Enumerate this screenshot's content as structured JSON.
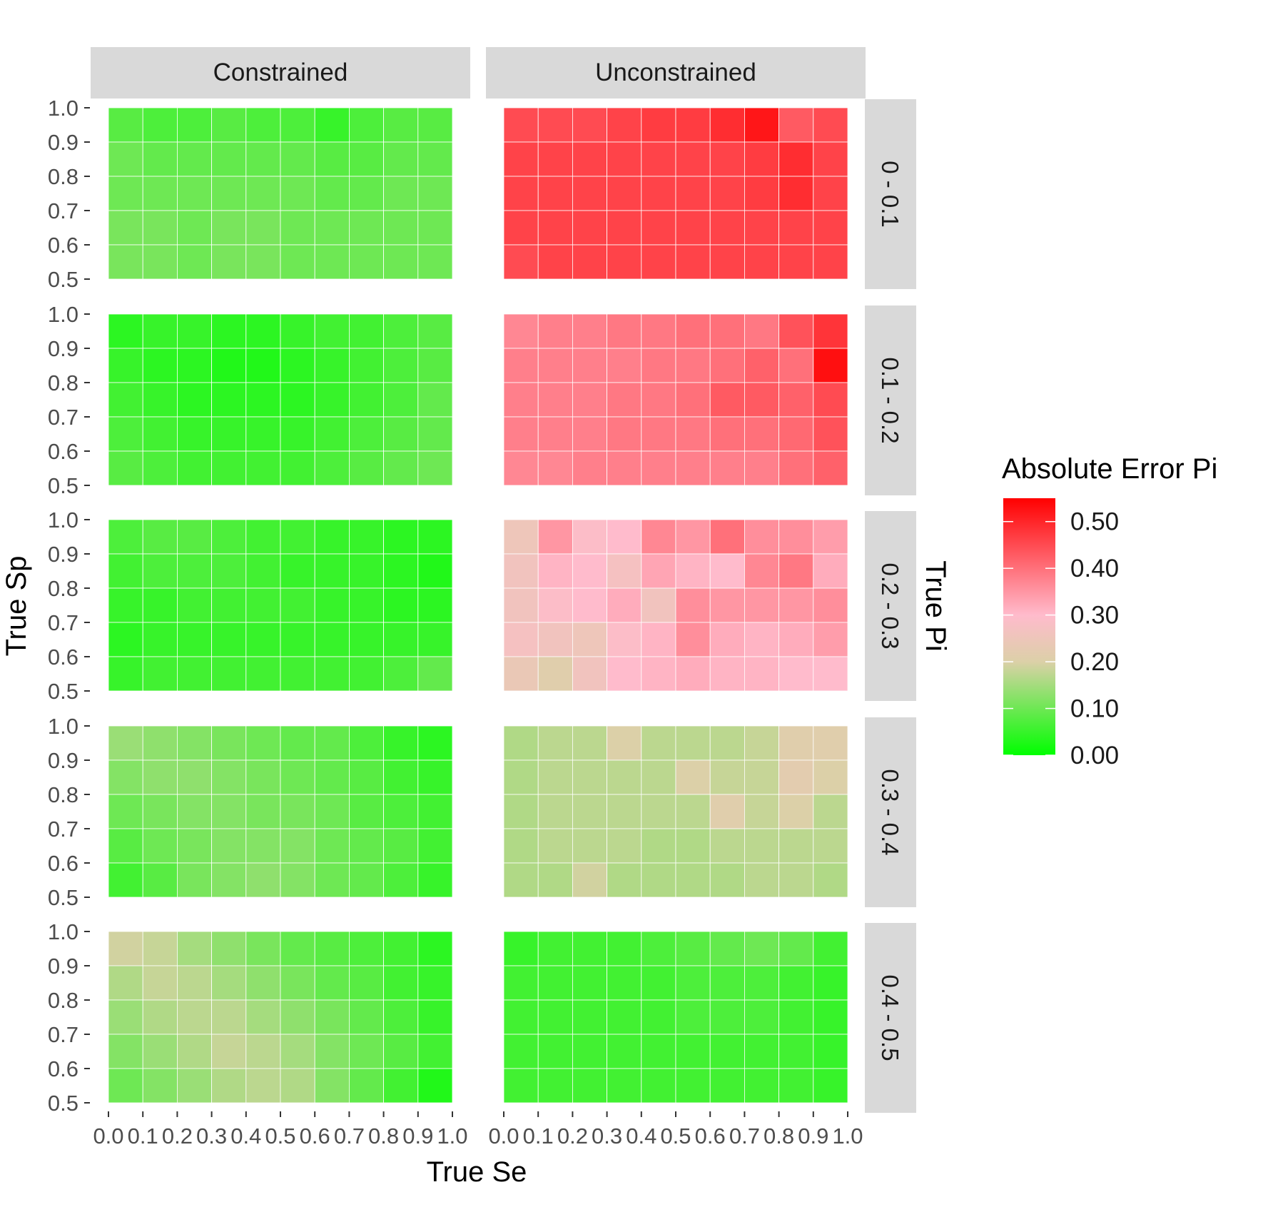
{
  "chart_data": {
    "type": "heatmap",
    "xlabel": "True Se",
    "ylabel": "True Sp",
    "facet_row_label": "True Pi",
    "legend_title": "Absolute Error Pi",
    "x_breaks": [
      "0.0",
      "0.1",
      "0.2",
      "0.3",
      "0.4",
      "0.5",
      "0.6",
      "0.7",
      "0.8",
      "0.9",
      "1.0"
    ],
    "y_breaks": [
      "0.5",
      "0.6",
      "0.7",
      "0.8",
      "0.9",
      "1.0"
    ],
    "xlim": [
      0,
      1
    ],
    "ylim": [
      0.5,
      1
    ],
    "x_centers": [
      0.05,
      0.15,
      0.25,
      0.35,
      0.45,
      0.55,
      0.65,
      0.75,
      0.85,
      0.95
    ],
    "y_centers": [
      0.95,
      0.85,
      0.75,
      0.65,
      0.55
    ],
    "color_scale": {
      "stops": [
        {
          "value": 0.0,
          "color": "#00ff00"
        },
        {
          "value": 0.2,
          "color": "#dcd0a8"
        },
        {
          "value": 0.3,
          "color": "#ffbbcc"
        },
        {
          "value": 0.55,
          "color": "#ff0000"
        }
      ],
      "limits": [
        0,
        0.55
      ],
      "breaks": [
        "0.00",
        "0.10",
        "0.20",
        "0.30",
        "0.40",
        "0.50"
      ]
    },
    "columns": [
      "Constrained",
      "Unconstrained"
    ],
    "rows": [
      "0 - 0.1",
      "0.1 - 0.2",
      "0.2 - 0.3",
      "0.3 - 0.4",
      "0.4 - 0.5"
    ],
    "panels": [
      {
        "row": "0 - 0.1",
        "col": "Constrained",
        "values": [
          [
            0.08,
            0.07,
            0.07,
            0.08,
            0.07,
            0.07,
            0.05,
            0.07,
            0.08,
            0.08
          ],
          [
            0.1,
            0.09,
            0.09,
            0.09,
            0.09,
            0.09,
            0.08,
            0.08,
            0.09,
            0.09
          ],
          [
            0.1,
            0.1,
            0.1,
            0.1,
            0.1,
            0.1,
            0.09,
            0.09,
            0.1,
            0.1
          ],
          [
            0.11,
            0.11,
            0.1,
            0.11,
            0.11,
            0.1,
            0.1,
            0.1,
            0.1,
            0.1
          ],
          [
            0.11,
            0.11,
            0.1,
            0.11,
            0.11,
            0.1,
            0.1,
            0.1,
            0.1,
            0.1
          ]
        ]
      },
      {
        "row": "0 - 0.1",
        "col": "Unconstrained",
        "values": [
          [
            0.45,
            0.45,
            0.45,
            0.46,
            0.47,
            0.47,
            0.49,
            0.52,
            0.43,
            0.45
          ],
          [
            0.46,
            0.46,
            0.46,
            0.46,
            0.46,
            0.46,
            0.46,
            0.47,
            0.49,
            0.46
          ],
          [
            0.46,
            0.46,
            0.46,
            0.46,
            0.46,
            0.46,
            0.46,
            0.47,
            0.49,
            0.46
          ],
          [
            0.46,
            0.46,
            0.46,
            0.46,
            0.46,
            0.46,
            0.46,
            0.46,
            0.46,
            0.46
          ],
          [
            0.45,
            0.46,
            0.46,
            0.46,
            0.46,
            0.46,
            0.46,
            0.46,
            0.46,
            0.46
          ]
        ]
      },
      {
        "row": "0.1 - 0.2",
        "col": "Constrained",
        "values": [
          [
            0.04,
            0.05,
            0.05,
            0.04,
            0.04,
            0.05,
            0.06,
            0.06,
            0.07,
            0.08
          ],
          [
            0.05,
            0.04,
            0.04,
            0.03,
            0.03,
            0.04,
            0.05,
            0.06,
            0.07,
            0.08
          ],
          [
            0.06,
            0.05,
            0.04,
            0.04,
            0.04,
            0.04,
            0.05,
            0.06,
            0.07,
            0.09
          ],
          [
            0.07,
            0.06,
            0.05,
            0.05,
            0.05,
            0.05,
            0.06,
            0.07,
            0.08,
            0.09
          ],
          [
            0.08,
            0.07,
            0.06,
            0.06,
            0.06,
            0.06,
            0.07,
            0.08,
            0.09,
            0.1
          ]
        ]
      },
      {
        "row": "0.1 - 0.2",
        "col": "Unconstrained",
        "values": [
          [
            0.37,
            0.38,
            0.38,
            0.39,
            0.39,
            0.4,
            0.4,
            0.39,
            0.44,
            0.48
          ],
          [
            0.38,
            0.38,
            0.38,
            0.38,
            0.39,
            0.39,
            0.4,
            0.42,
            0.4,
            0.53
          ],
          [
            0.38,
            0.38,
            0.38,
            0.39,
            0.39,
            0.4,
            0.43,
            0.43,
            0.42,
            0.45
          ],
          [
            0.38,
            0.38,
            0.38,
            0.39,
            0.39,
            0.39,
            0.4,
            0.4,
            0.41,
            0.44
          ],
          [
            0.37,
            0.37,
            0.38,
            0.38,
            0.38,
            0.38,
            0.38,
            0.38,
            0.4,
            0.42
          ]
        ]
      },
      {
        "row": "0.2 - 0.3",
        "col": "Constrained",
        "values": [
          [
            0.07,
            0.08,
            0.08,
            0.07,
            0.06,
            0.06,
            0.05,
            0.05,
            0.04,
            0.04
          ],
          [
            0.06,
            0.07,
            0.07,
            0.07,
            0.06,
            0.05,
            0.05,
            0.05,
            0.04,
            0.03
          ],
          [
            0.05,
            0.05,
            0.06,
            0.06,
            0.06,
            0.06,
            0.05,
            0.05,
            0.04,
            0.04
          ],
          [
            0.04,
            0.05,
            0.05,
            0.05,
            0.05,
            0.05,
            0.05,
            0.05,
            0.05,
            0.05
          ],
          [
            0.05,
            0.06,
            0.06,
            0.06,
            0.06,
            0.06,
            0.06,
            0.06,
            0.07,
            0.09
          ]
        ]
      },
      {
        "row": "0.2 - 0.3",
        "col": "Unconstrained",
        "values": [
          [
            0.25,
            0.35,
            0.29,
            0.3,
            0.37,
            0.35,
            0.4,
            0.36,
            0.36,
            0.34
          ],
          [
            0.26,
            0.31,
            0.3,
            0.27,
            0.33,
            0.31,
            0.3,
            0.37,
            0.39,
            0.32
          ],
          [
            0.26,
            0.29,
            0.3,
            0.32,
            0.26,
            0.36,
            0.35,
            0.35,
            0.35,
            0.36
          ],
          [
            0.27,
            0.26,
            0.25,
            0.29,
            0.31,
            0.36,
            0.32,
            0.31,
            0.32,
            0.34
          ],
          [
            0.24,
            0.21,
            0.26,
            0.3,
            0.31,
            0.32,
            0.31,
            0.31,
            0.3,
            0.3
          ]
        ]
      },
      {
        "row": "0.3 - 0.4",
        "col": "Constrained",
        "values": [
          [
            0.14,
            0.13,
            0.12,
            0.11,
            0.1,
            0.09,
            0.09,
            0.07,
            0.05,
            0.04
          ],
          [
            0.12,
            0.13,
            0.13,
            0.12,
            0.11,
            0.1,
            0.09,
            0.08,
            0.06,
            0.05
          ],
          [
            0.1,
            0.11,
            0.12,
            0.12,
            0.11,
            0.11,
            0.1,
            0.08,
            0.07,
            0.06
          ],
          [
            0.08,
            0.1,
            0.11,
            0.12,
            0.12,
            0.12,
            0.1,
            0.09,
            0.08,
            0.06
          ],
          [
            0.06,
            0.08,
            0.11,
            0.12,
            0.13,
            0.12,
            0.1,
            0.09,
            0.07,
            0.05
          ]
        ]
      },
      {
        "row": "0.3 - 0.4",
        "col": "Unconstrained",
        "values": [
          [
            0.16,
            0.17,
            0.17,
            0.2,
            0.17,
            0.17,
            0.17,
            0.18,
            0.21,
            0.21
          ],
          [
            0.16,
            0.17,
            0.17,
            0.17,
            0.17,
            0.2,
            0.18,
            0.18,
            0.22,
            0.2
          ],
          [
            0.16,
            0.17,
            0.17,
            0.17,
            0.17,
            0.17,
            0.21,
            0.18,
            0.2,
            0.17
          ],
          [
            0.16,
            0.17,
            0.17,
            0.17,
            0.16,
            0.16,
            0.17,
            0.17,
            0.17,
            0.17
          ],
          [
            0.16,
            0.16,
            0.19,
            0.16,
            0.16,
            0.16,
            0.16,
            0.17,
            0.17,
            0.16
          ]
        ]
      },
      {
        "row": "0.4 - 0.5",
        "col": "Constrained",
        "values": [
          [
            0.19,
            0.18,
            0.15,
            0.13,
            0.11,
            0.09,
            0.08,
            0.07,
            0.06,
            0.04
          ],
          [
            0.16,
            0.18,
            0.17,
            0.15,
            0.13,
            0.11,
            0.09,
            0.08,
            0.06,
            0.05
          ],
          [
            0.14,
            0.16,
            0.17,
            0.17,
            0.15,
            0.13,
            0.11,
            0.09,
            0.07,
            0.05
          ],
          [
            0.12,
            0.14,
            0.16,
            0.18,
            0.17,
            0.15,
            0.12,
            0.1,
            0.08,
            0.06
          ],
          [
            0.1,
            0.12,
            0.14,
            0.16,
            0.17,
            0.16,
            0.12,
            0.09,
            0.06,
            0.03
          ]
        ]
      },
      {
        "row": "0.4 - 0.5",
        "col": "Unconstrained",
        "values": [
          [
            0.05,
            0.06,
            0.06,
            0.06,
            0.07,
            0.08,
            0.09,
            0.1,
            0.09,
            0.06
          ],
          [
            0.06,
            0.06,
            0.06,
            0.06,
            0.06,
            0.07,
            0.07,
            0.07,
            0.06,
            0.05
          ],
          [
            0.06,
            0.06,
            0.06,
            0.06,
            0.06,
            0.07,
            0.07,
            0.07,
            0.06,
            0.05
          ],
          [
            0.06,
            0.06,
            0.06,
            0.06,
            0.06,
            0.06,
            0.06,
            0.06,
            0.06,
            0.05
          ],
          [
            0.06,
            0.06,
            0.06,
            0.06,
            0.06,
            0.06,
            0.06,
            0.06,
            0.06,
            0.05
          ]
        ]
      }
    ]
  }
}
